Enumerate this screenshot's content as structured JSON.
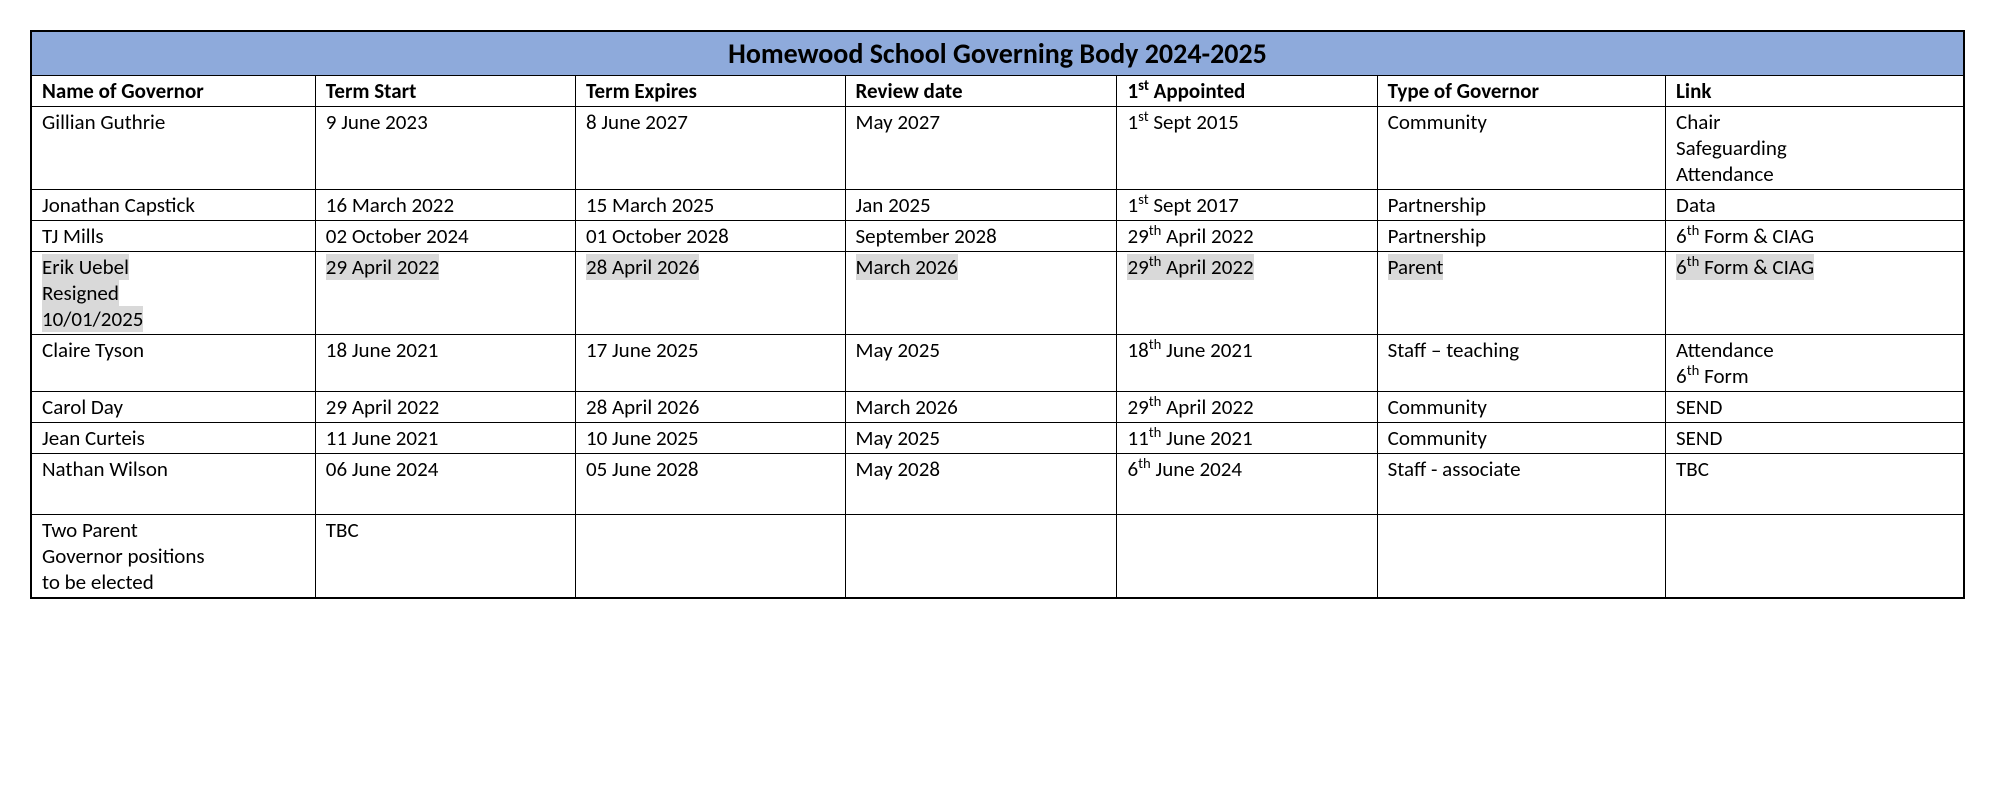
{
  "title": "Homewood School Governing Body 2024-2025",
  "columns": [
    "Name of Governor",
    "Term Start",
    "Term Expires",
    "Review date",
    "1<sup>st</sup> Appointed",
    "Type of Governor",
    "Link"
  ],
  "rows": [
    {
      "cells": [
        "Gillian Guthrie",
        "9 June 2023",
        "8 June 2027",
        "May 2027",
        "1<sup>st</sup> Sept 2015",
        "Community",
        "Chair<br>Safeguarding<br>Attendance"
      ],
      "hl": [
        false,
        false,
        false,
        false,
        false,
        false,
        false
      ]
    },
    {
      "cells": [
        "Jonathan Capstick",
        "16 March 2022",
        "15 March 2025",
        "Jan 2025",
        "1<sup>st</sup> Sept 2017",
        "Partnership",
        "Data"
      ],
      "hl": [
        false,
        false,
        false,
        false,
        false,
        false,
        false
      ]
    },
    {
      "cells": [
        "TJ Mills",
        "02 October 2024",
        "01 October 2028",
        "September 2028",
        "29<sup>th</sup> April 2022",
        "Partnership",
        "6<sup>th</sup> Form & CIAG"
      ],
      "hl": [
        false,
        false,
        false,
        false,
        false,
        false,
        false
      ]
    },
    {
      "cells": [
        "Erik Uebel<br>Resigned<br>10/01/2025",
        "29 April 2022",
        "28 April 2026",
        "March 2026",
        "29<sup>th</sup> April 2022",
        "Parent",
        "6<sup>th</sup> Form & CIAG"
      ],
      "hl": [
        true,
        true,
        true,
        true,
        true,
        true,
        true
      ]
    },
    {
      "cells": [
        "Claire Tyson",
        "18 June 2021",
        "17 June 2025",
        "May 2025",
        "18<sup>th</sup> June 2021",
        "Staff – teaching",
        "Attendance<br>6<sup>th</sup> Form"
      ],
      "hl": [
        false,
        false,
        false,
        false,
        false,
        false,
        false
      ]
    },
    {
      "cells": [
        "Carol Day",
        "29 April 2022",
        "28 April 2026",
        "March 2026",
        "29<sup>th</sup> April 2022",
        "Community",
        "SEND"
      ],
      "hl": [
        false,
        false,
        false,
        false,
        false,
        false,
        false
      ]
    },
    {
      "cells": [
        "Jean Curteis",
        "11 June 2021",
        "10 June 2025",
        "May 2025",
        "11<sup>th</sup> June 2021",
        "Community",
        "SEND"
      ],
      "hl": [
        false,
        false,
        false,
        false,
        false,
        false,
        false
      ]
    },
    {
      "cells": [
        "Nathan Wilson",
        "06 June 2024",
        "05 June 2028",
        "May 2028",
        "6<sup>th</sup> June 2024",
        "Staff - associate",
        "TBC"
      ],
      "hl": [
        false,
        false,
        false,
        false,
        false,
        false,
        false
      ],
      "tall": true
    },
    {
      "cells": [
        "Two Parent<br>Governor positions<br>to be elected",
        "TBC",
        "",
        "",
        "",
        "",
        ""
      ],
      "hl": [
        false,
        false,
        false,
        false,
        false,
        false,
        false
      ]
    }
  ],
  "style": {
    "header_bg": "#8eaadb",
    "highlight_bg": "#d9d9d9",
    "border_color": "#000000",
    "title_fontsize": 28,
    "cell_fontsize": 21
  }
}
